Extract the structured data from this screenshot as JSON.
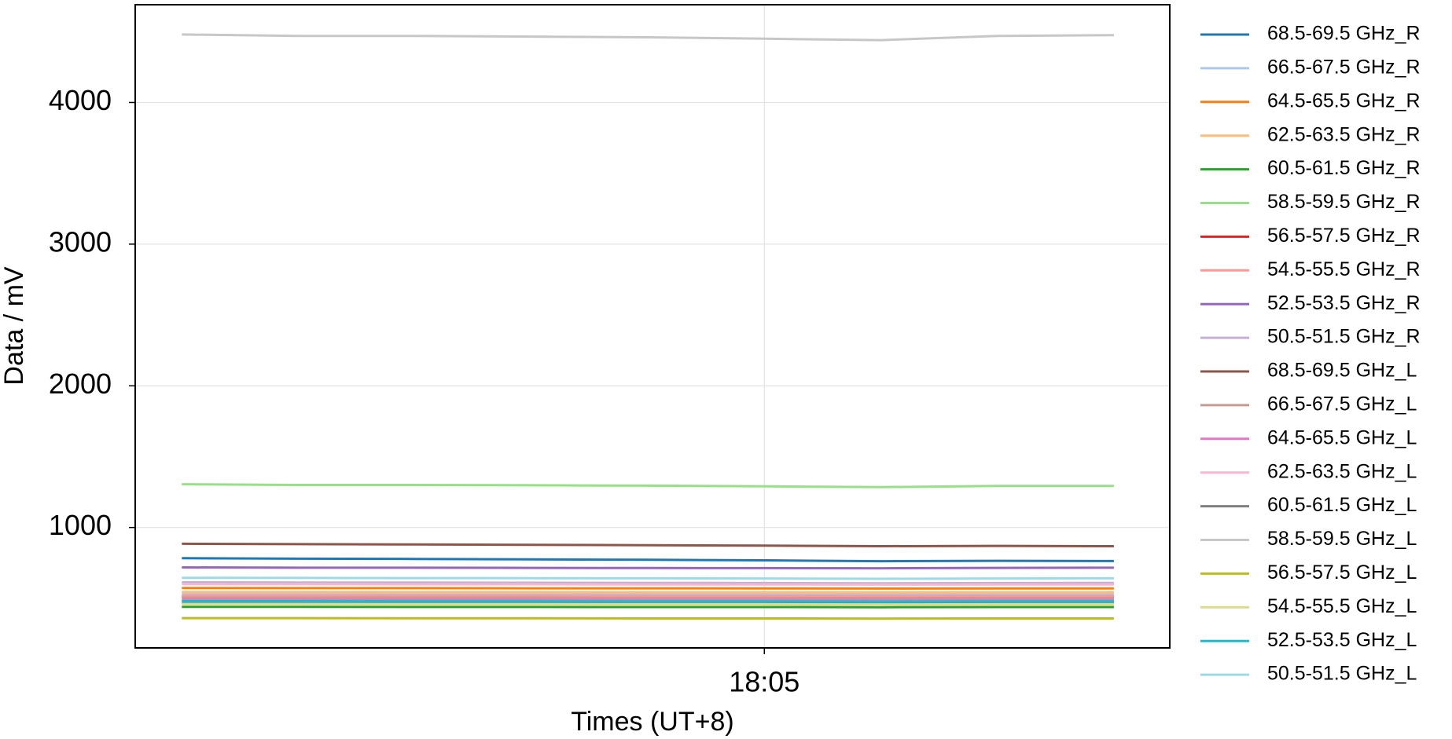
{
  "chart_data": {
    "type": "line",
    "x_label": "Times (UT+8)",
    "y_label": "Data / mV",
    "x": [
      1082.5,
      1083,
      1083.5,
      1084,
      1084.5,
      1085,
      1085.5,
      1086,
      1086.5
    ],
    "xlim": [
      1082.3,
      1086.74
    ],
    "xticks": [
      {
        "value": 1085,
        "label": "18:05"
      }
    ],
    "ylim": [
      150,
      4690
    ],
    "yticks": [
      1000,
      2000,
      3000,
      4000
    ],
    "grid": true,
    "series": [
      {
        "name": "68.5-69.5 GHz_R",
        "color": "#1f77b4",
        "values": [
          783,
          780,
          778,
          775,
          772,
          768,
          762,
          765,
          763
        ]
      },
      {
        "name": "66.5-67.5 GHz_R",
        "color": "#aec7e8",
        "values": [
          530,
          530,
          529,
          529,
          528,
          528,
          527,
          528,
          528
        ]
      },
      {
        "name": "64.5-65.5 GHz_R",
        "color": "#ff7f0e",
        "values": [
          573,
          572,
          572,
          571,
          571,
          570,
          569,
          570,
          570
        ]
      },
      {
        "name": "62.5-63.5 GHz_R",
        "color": "#ffbb78",
        "values": [
          545,
          545,
          544,
          544,
          543,
          543,
          542,
          543,
          543
        ]
      },
      {
        "name": "60.5-61.5 GHz_R",
        "color": "#2ca02c",
        "values": [
          440,
          440,
          439,
          439,
          438,
          438,
          437,
          438,
          438
        ]
      },
      {
        "name": "58.5-59.5 GHz_R",
        "color": "#98df8a",
        "values": [
          1305,
          1300,
          1300,
          1298,
          1295,
          1290,
          1285,
          1293,
          1293
        ]
      },
      {
        "name": "56.5-57.5 GHz_R",
        "color": "#d62728",
        "values": [
          510,
          510,
          509,
          509,
          508,
          508,
          507,
          508,
          508
        ]
      },
      {
        "name": "54.5-55.5 GHz_R",
        "color": "#ff9896",
        "values": [
          520,
          520,
          519,
          519,
          518,
          518,
          517,
          518,
          518
        ]
      },
      {
        "name": "52.5-53.5 GHz_R",
        "color": "#9467bd",
        "values": [
          718,
          716,
          716,
          715,
          714,
          713,
          712,
          715,
          716
        ]
      },
      {
        "name": "50.5-51.5 GHz_R",
        "color": "#c5b0d5",
        "values": [
          613,
          612,
          611,
          610,
          609,
          608,
          606,
          608,
          609
        ]
      },
      {
        "name": "68.5-69.5 GHz_L",
        "color": "#8c564b",
        "values": [
          885,
          882,
          880,
          878,
          875,
          872,
          868,
          870,
          868
        ]
      },
      {
        "name": "66.5-67.5 GHz_L",
        "color": "#c49c94",
        "values": [
          505,
          505,
          504,
          504,
          503,
          503,
          502,
          503,
          503
        ]
      },
      {
        "name": "64.5-65.5 GHz_L",
        "color": "#e377c2",
        "values": [
          490,
          490,
          489,
          489,
          488,
          488,
          487,
          488,
          488
        ]
      },
      {
        "name": "62.5-63.5 GHz_L",
        "color": "#f7b6d2",
        "values": [
          600,
          600,
          599,
          599,
          598,
          598,
          597,
          598,
          598
        ]
      },
      {
        "name": "60.5-61.5 GHz_L",
        "color": "#7f7f7f",
        "values": [
          470,
          470,
          469,
          469,
          468,
          468,
          467,
          468,
          468
        ]
      },
      {
        "name": "58.5-59.5 GHz_L",
        "color": "#c7c7c7",
        "values": [
          4480,
          4470,
          4470,
          4465,
          4460,
          4450,
          4440,
          4470,
          4475
        ]
      },
      {
        "name": "56.5-57.5 GHz_L",
        "color": "#bcbd22",
        "values": [
          360,
          360,
          359,
          359,
          358,
          358,
          357,
          358,
          358
        ]
      },
      {
        "name": "54.5-55.5 GHz_L",
        "color": "#dbdb8d",
        "values": [
          460,
          460,
          459,
          459,
          458,
          458,
          457,
          458,
          458
        ]
      },
      {
        "name": "52.5-53.5 GHz_L",
        "color": "#17becf",
        "values": [
          480,
          480,
          479,
          479,
          478,
          478,
          477,
          478,
          478
        ]
      },
      {
        "name": "50.5-51.5 GHz_L",
        "color": "#9edae5",
        "values": [
          645,
          644,
          643,
          642,
          641,
          640,
          638,
          640,
          641
        ]
      }
    ]
  }
}
